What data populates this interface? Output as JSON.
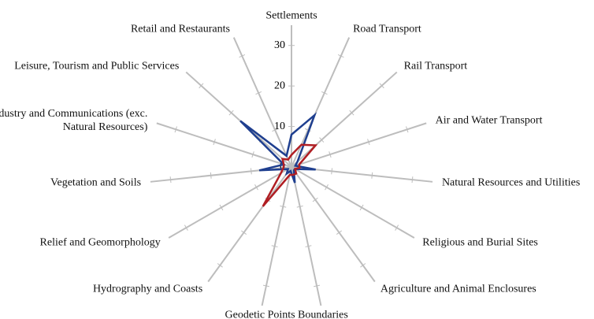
{
  "chart_data": {
    "type": "radar",
    "categories": [
      "Settlements",
      "Road Transport",
      "Rail Transport",
      "Air and Water Transport",
      "Natural Resources and Utilities",
      "Religious and Burial Sites",
      "Agriculture and Animal Enclosures",
      "Boundaries",
      "Geodetic Points",
      "Hydrography and Coasts",
      "Relief and Geomorphology",
      "Vegetation and Soils",
      "Industry and Communications (exc. Natural Resources)",
      "Leisure, Tourism and Public Services",
      "Retail and Restaurants"
    ],
    "series": [
      {
        "color": "#1f3f8f",
        "values": [
          8,
          14,
          2,
          1,
          6,
          1,
          1,
          4,
          1,
          2,
          1,
          8,
          2,
          17,
          3
        ]
      },
      {
        "color": "#b01e23",
        "values": [
          3,
          6,
          8,
          2,
          2,
          1,
          2,
          2,
          2,
          12,
          3,
          2,
          2,
          3,
          2
        ]
      }
    ],
    "ylim": [
      0,
      35
    ],
    "yticks": [
      0,
      10,
      20,
      30
    ],
    "axis_color": "#bdbdbd"
  }
}
